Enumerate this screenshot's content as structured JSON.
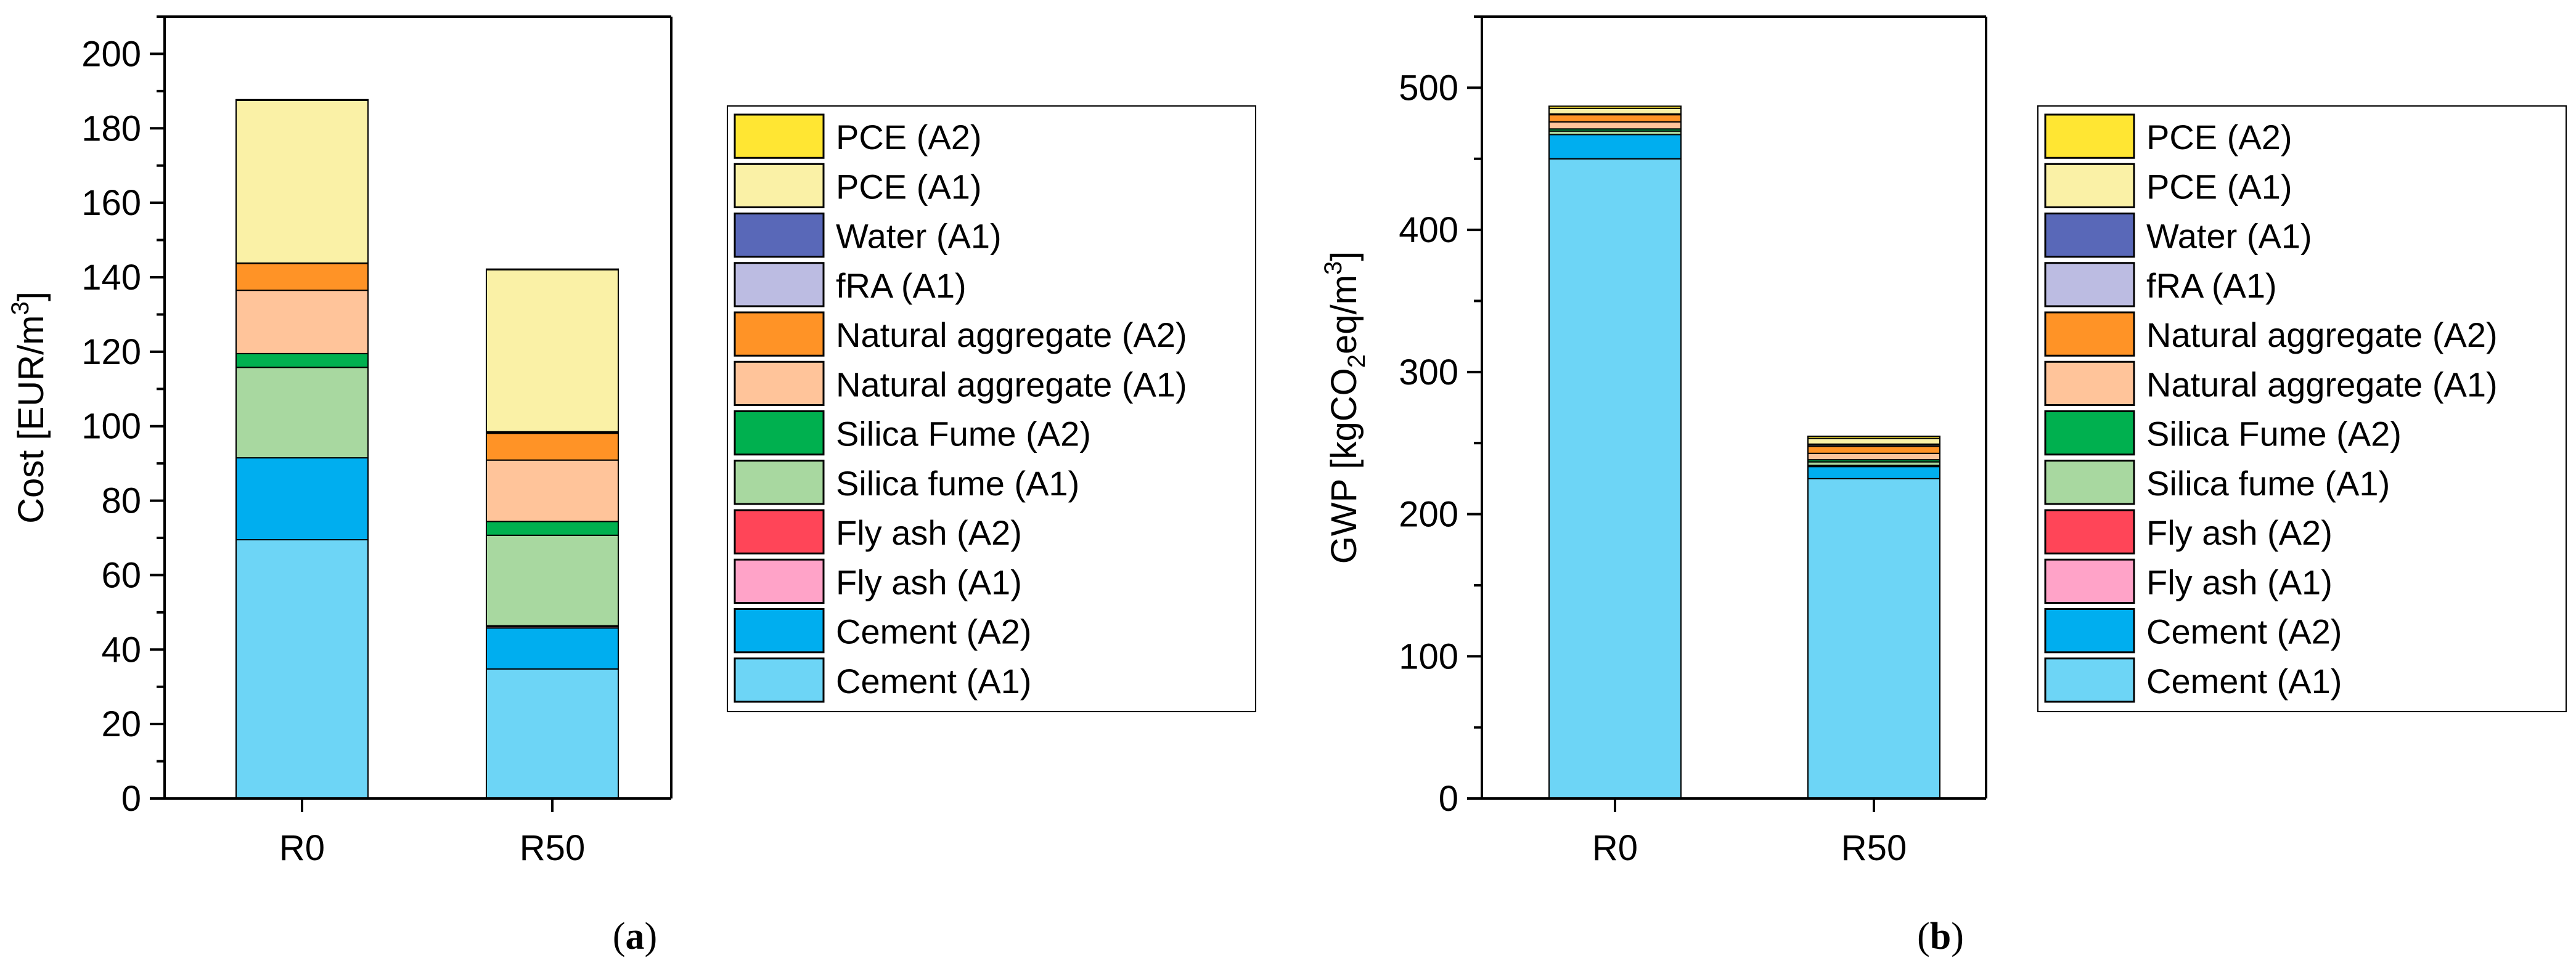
{
  "colors": {
    "Cement (A1)": "#6DD5F6",
    "Cement (A2)": "#00AEEF",
    "Fly ash (A1)": "#FFA3C8",
    "Fly ash (A2)": "#FF4558",
    "Silica fume (A1)": "#A8D8A0",
    "Silica Fume (A2)": "#00B04F",
    "Natural aggregate (A1)": "#FFC49A",
    "Natural aggregate (A2)": "#FF9326",
    "fRA (A1)": "#BCBCE2",
    "Water (A1)": "#5968B8",
    "PCE (A1)": "#FAF1A6",
    "PCE (A2)": "#FFE633"
  },
  "chart_data": [
    {
      "type": "bar",
      "stacked": true,
      "panel_label": "a",
      "title": "",
      "xlabel": "",
      "ylabel": "Cost [EUR/m³]",
      "ylabel_parts": {
        "pre": "Cost [EUR/m",
        "sup": "3",
        "post": "]"
      },
      "ylim": [
        0,
        210
      ],
      "ytick_step": 20,
      "ytick_labels": [
        "0",
        "20",
        "40",
        "60",
        "80",
        "100",
        "120",
        "140",
        "160",
        "180",
        "200"
      ],
      "minor_ticks": true,
      "categories": [
        "R0",
        "R50"
      ],
      "legend_position": "right",
      "series": [
        {
          "name": "Cement (A1)",
          "values": [
            69.5,
            34.8
          ]
        },
        {
          "name": "Cement (A2)",
          "values": [
            22,
            11
          ]
        },
        {
          "name": "Fly ash (A1)",
          "values": [
            0,
            0.4
          ]
        },
        {
          "name": "Fly ash (A2)",
          "values": [
            0,
            0.2
          ]
        },
        {
          "name": "Silica fume (A1)",
          "values": [
            24.3,
            24.3
          ]
        },
        {
          "name": "Silica Fume (A2)",
          "values": [
            3.7,
            3.7
          ]
        },
        {
          "name": "Natural aggregate (A1)",
          "values": [
            17,
            16.5
          ]
        },
        {
          "name": "Natural aggregate (A2)",
          "values": [
            7.2,
            7.2
          ]
        },
        {
          "name": "fRA (A1)",
          "values": [
            0,
            0.3
          ]
        },
        {
          "name": "Water (A1)",
          "values": [
            0.1,
            0.1
          ]
        },
        {
          "name": "PCE (A1)",
          "values": [
            43.7,
            43.5
          ]
        },
        {
          "name": "PCE (A2)",
          "values": [
            0.2,
            0.2
          ]
        }
      ],
      "legend_order": [
        "PCE (A2)",
        "PCE (A1)",
        "Water (A1)",
        "fRA (A1)",
        "Natural aggregate (A2)",
        "Natural aggregate (A1)",
        "Silica Fume (A2)",
        "Silica fume (A1)",
        "Fly ash (A2)",
        "Fly ash (A1)",
        "Cement (A2)",
        "Cement (A1)"
      ]
    },
    {
      "type": "bar",
      "stacked": true,
      "panel_label": "b",
      "title": "",
      "xlabel": "",
      "ylabel": "GWP [kgCO₂eq/m³]",
      "ylabel_parts": {
        "pre": "GWP [kgCO",
        "sub": "2",
        "mid": "eq/m",
        "sup": "3",
        "post": "]"
      },
      "ylim": [
        0,
        550
      ],
      "ytick_step": 100,
      "ytick_labels": [
        "0",
        "100",
        "200",
        "300",
        "400",
        "500"
      ],
      "minor_ticks": true,
      "categories": [
        "R0",
        "R50"
      ],
      "legend_position": "right",
      "series": [
        {
          "name": "Cement (A1)",
          "values": [
            450,
            225
          ]
        },
        {
          "name": "Cement (A2)",
          "values": [
            17,
            8.5
          ]
        },
        {
          "name": "Fly ash (A1)",
          "values": [
            0,
            0.5
          ]
        },
        {
          "name": "Fly ash (A2)",
          "values": [
            0,
            0.3
          ]
        },
        {
          "name": "Silica fume (A1)",
          "values": [
            2.5,
            2.5
          ]
        },
        {
          "name": "Silica Fume (A2)",
          "values": [
            1.5,
            1.5
          ]
        },
        {
          "name": "Natural aggregate (A1)",
          "values": [
            5,
            4.5
          ]
        },
        {
          "name": "Natural aggregate (A2)",
          "values": [
            5,
            5
          ]
        },
        {
          "name": "fRA (A1)",
          "values": [
            0,
            1
          ]
        },
        {
          "name": "Water (A1)",
          "values": [
            0.5,
            0.5
          ]
        },
        {
          "name": "PCE (A1)",
          "values": [
            4,
            4
          ]
        },
        {
          "name": "PCE (A2)",
          "values": [
            1.5,
            1.5
          ]
        }
      ],
      "legend_order": [
        "PCE (A2)",
        "PCE (A1)",
        "Water (A1)",
        "fRA (A1)",
        "Natural aggregate (A2)",
        "Natural aggregate (A1)",
        "Silica Fume (A2)",
        "Silica fume (A1)",
        "Fly ash (A2)",
        "Fly ash (A1)",
        "Cement (A2)",
        "Cement (A1)"
      ]
    }
  ]
}
